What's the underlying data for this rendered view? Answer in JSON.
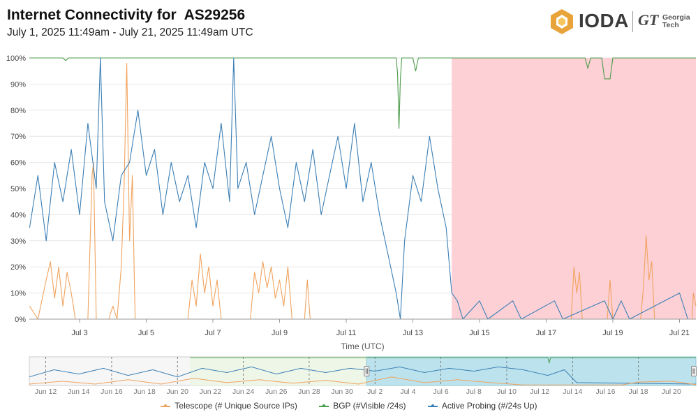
{
  "header": {
    "title": "Internet Connectivity for  AS29256",
    "subtitle": "July 1, 2025 11:49am - July 21, 2025 11:49am UTC"
  },
  "logo": {
    "icon": "ioda-hexagon-icon",
    "ioda_text": "IODA",
    "gt_text": "GT",
    "georgia_text": "Georgia",
    "tech_text": "Tech",
    "colors": {
      "hexagon_outer": "#e8a33a",
      "hexagon_inner": "#f6c65c"
    }
  },
  "chart_data": {
    "type": "line",
    "title": "Internet Connectivity for  AS29256",
    "subtitle": "July 1, 2025 11:49am - July 21, 2025 11:49am UTC",
    "xlabel": "Time (UTC)",
    "ylabel": "",
    "y_unit": "%",
    "ylim": [
      0,
      100
    ],
    "y_ticks": [
      "0%",
      "10%",
      "20%",
      "30%",
      "40%",
      "50%",
      "60%",
      "70%",
      "80%",
      "90%",
      "100%"
    ],
    "xlim": [
      "2025-07-01T11:49",
      "2025-07-21T11:49"
    ],
    "x_ticks": [
      "Jul 3",
      "Jul 5",
      "Jul 7",
      "Jul 9",
      "Jul 11",
      "Jul 13",
      "Jul 15",
      "Jul 17",
      "Jul 19",
      "Jul 21"
    ],
    "grid": true,
    "outage_region": {
      "start": "2025-07-14T04:00",
      "end": "2025-07-21T11:49",
      "color": "#fdd0d6"
    },
    "legend_position": "bottom",
    "series": [
      {
        "name": "Telescope (# Unique Source IPs)",
        "color": "#f0a35e",
        "points": [
          [
            "2025-07-01T12:00",
            5
          ],
          [
            "2025-07-01T18:00",
            0
          ],
          [
            "2025-07-02T00:00",
            15
          ],
          [
            "2025-07-02T03:00",
            22
          ],
          [
            "2025-07-02T06:00",
            8
          ],
          [
            "2025-07-02T09:00",
            20
          ],
          [
            "2025-07-02T12:00",
            5
          ],
          [
            "2025-07-02T15:00",
            18
          ],
          [
            "2025-07-02T18:00",
            10
          ],
          [
            "2025-07-02T21:00",
            0
          ],
          [
            "2025-07-03T06:00",
            0
          ],
          [
            "2025-07-03T09:00",
            55
          ],
          [
            "2025-07-03T10:00",
            60
          ],
          [
            "2025-07-03T12:00",
            0
          ],
          [
            "2025-07-03T21:00",
            0
          ],
          [
            "2025-07-04T00:00",
            5
          ],
          [
            "2025-07-04T03:00",
            0
          ],
          [
            "2025-07-04T06:00",
            20
          ],
          [
            "2025-07-04T08:00",
            50
          ],
          [
            "2025-07-04T10:00",
            98
          ],
          [
            "2025-07-04T12:00",
            30
          ],
          [
            "2025-07-04T14:00",
            55
          ],
          [
            "2025-07-04T16:00",
            0
          ],
          [
            "2025-07-06T06:00",
            0
          ],
          [
            "2025-07-06T09:00",
            15
          ],
          [
            "2025-07-06T12:00",
            5
          ],
          [
            "2025-07-06T15:00",
            25
          ],
          [
            "2025-07-06T18:00",
            10
          ],
          [
            "2025-07-06T21:00",
            20
          ],
          [
            "2025-07-07T00:00",
            5
          ],
          [
            "2025-07-07T03:00",
            15
          ],
          [
            "2025-07-07T06:00",
            0
          ],
          [
            "2025-07-08T03:00",
            0
          ],
          [
            "2025-07-08T06:00",
            18
          ],
          [
            "2025-07-08T09:00",
            10
          ],
          [
            "2025-07-08T12:00",
            22
          ],
          [
            "2025-07-08T15:00",
            12
          ],
          [
            "2025-07-08T18:00",
            20
          ],
          [
            "2025-07-08T21:00",
            8
          ],
          [
            "2025-07-09T00:00",
            15
          ],
          [
            "2025-07-09T03:00",
            5
          ],
          [
            "2025-07-09T06:00",
            20
          ],
          [
            "2025-07-09T09:00",
            0
          ],
          [
            "2025-07-09T18:00",
            0
          ],
          [
            "2025-07-09T20:00",
            15
          ],
          [
            "2025-07-09T22:00",
            0
          ],
          [
            "2025-07-17T18:00",
            0
          ],
          [
            "2025-07-17T20:00",
            20
          ],
          [
            "2025-07-17T22:00",
            10
          ],
          [
            "2025-07-18T00:00",
            18
          ],
          [
            "2025-07-18T02:00",
            0
          ],
          [
            "2025-07-18T20:00",
            0
          ],
          [
            "2025-07-18T22:00",
            15
          ],
          [
            "2025-07-19T00:00",
            0
          ],
          [
            "2025-07-19T20:00",
            0
          ],
          [
            "2025-07-19T22:00",
            12
          ],
          [
            "2025-07-20T00:00",
            32
          ],
          [
            "2025-07-20T02:00",
            15
          ],
          [
            "2025-07-20T04:00",
            22
          ],
          [
            "2025-07-20T06:00",
            0
          ],
          [
            "2025-07-21T09:00",
            0
          ],
          [
            "2025-07-21T10:00",
            10
          ],
          [
            "2025-07-21T11:49",
            5
          ]
        ]
      },
      {
        "name": "BGP (#Visible /24s)",
        "color": "#4a9b4a",
        "points": [
          [
            "2025-07-01T11:49",
            100
          ],
          [
            "2025-07-02T12:00",
            100
          ],
          [
            "2025-07-02T14:00",
            99
          ],
          [
            "2025-07-02T16:00",
            100
          ],
          [
            "2025-07-12T12:00",
            100
          ],
          [
            "2025-07-12T13:00",
            94
          ],
          [
            "2025-07-12T14:00",
            73
          ],
          [
            "2025-07-12T15:00",
            92
          ],
          [
            "2025-07-12T16:00",
            100
          ],
          [
            "2025-07-13T00:00",
            100
          ],
          [
            "2025-07-13T02:00",
            95
          ],
          [
            "2025-07-13T04:00",
            100
          ],
          [
            "2025-07-18T04:00",
            100
          ],
          [
            "2025-07-18T06:00",
            96
          ],
          [
            "2025-07-18T08:00",
            100
          ],
          [
            "2025-07-18T16:00",
            100
          ],
          [
            "2025-07-18T18:00",
            92
          ],
          [
            "2025-07-18T22:00",
            92
          ],
          [
            "2025-07-19T00:00",
            100
          ],
          [
            "2025-07-21T11:49",
            100
          ]
        ]
      },
      {
        "name": "Active Probing (#/24s Up)",
        "color": "#3b7fb5",
        "points": [
          [
            "2025-07-01T12:00",
            35
          ],
          [
            "2025-07-01T18:00",
            55
          ],
          [
            "2025-07-02T00:00",
            30
          ],
          [
            "2025-07-02T06:00",
            60
          ],
          [
            "2025-07-02T12:00",
            45
          ],
          [
            "2025-07-02T18:00",
            65
          ],
          [
            "2025-07-03T00:00",
            40
          ],
          [
            "2025-07-03T06:00",
            75
          ],
          [
            "2025-07-03T12:00",
            50
          ],
          [
            "2025-07-03T15:00",
            100
          ],
          [
            "2025-07-03T18:00",
            45
          ],
          [
            "2025-07-04T00:00",
            30
          ],
          [
            "2025-07-04T06:00",
            55
          ],
          [
            "2025-07-04T12:00",
            60
          ],
          [
            "2025-07-04T18:00",
            80
          ],
          [
            "2025-07-05T00:00",
            55
          ],
          [
            "2025-07-05T06:00",
            65
          ],
          [
            "2025-07-05T12:00",
            40
          ],
          [
            "2025-07-05T18:00",
            60
          ],
          [
            "2025-07-06T00:00",
            45
          ],
          [
            "2025-07-06T06:00",
            55
          ],
          [
            "2025-07-06T12:00",
            35
          ],
          [
            "2025-07-06T18:00",
            60
          ],
          [
            "2025-07-07T00:00",
            50
          ],
          [
            "2025-07-07T06:00",
            75
          ],
          [
            "2025-07-07T12:00",
            45
          ],
          [
            "2025-07-07T15:00",
            100
          ],
          [
            "2025-07-07T18:00",
            50
          ],
          [
            "2025-07-08T00:00",
            60
          ],
          [
            "2025-07-08T06:00",
            40
          ],
          [
            "2025-07-08T12:00",
            55
          ],
          [
            "2025-07-08T18:00",
            70
          ],
          [
            "2025-07-09T00:00",
            50
          ],
          [
            "2025-07-09T06:00",
            35
          ],
          [
            "2025-07-09T12:00",
            60
          ],
          [
            "2025-07-09T18:00",
            45
          ],
          [
            "2025-07-10T00:00",
            65
          ],
          [
            "2025-07-10T06:00",
            40
          ],
          [
            "2025-07-10T12:00",
            55
          ],
          [
            "2025-07-10T18:00",
            70
          ],
          [
            "2025-07-11T00:00",
            50
          ],
          [
            "2025-07-11T06:00",
            75
          ],
          [
            "2025-07-11T12:00",
            45
          ],
          [
            "2025-07-11T18:00",
            60
          ],
          [
            "2025-07-12T00:00",
            40
          ],
          [
            "2025-07-12T06:00",
            25
          ],
          [
            "2025-07-12T12:00",
            10
          ],
          [
            "2025-07-12T15:00",
            0
          ],
          [
            "2025-07-12T18:00",
            30
          ],
          [
            "2025-07-13T00:00",
            55
          ],
          [
            "2025-07-13T06:00",
            45
          ],
          [
            "2025-07-13T12:00",
            70
          ],
          [
            "2025-07-13T18:00",
            50
          ],
          [
            "2025-07-14T00:00",
            35
          ],
          [
            "2025-07-14T04:00",
            10
          ],
          [
            "2025-07-14T08:00",
            7
          ],
          [
            "2025-07-14T12:00",
            0
          ],
          [
            "2025-07-15T00:00",
            7
          ],
          [
            "2025-07-15T06:00",
            0
          ],
          [
            "2025-07-16T00:00",
            7
          ],
          [
            "2025-07-16T06:00",
            0
          ],
          [
            "2025-07-17T06:00",
            7
          ],
          [
            "2025-07-17T12:00",
            0
          ],
          [
            "2025-07-18T18:00",
            7
          ],
          [
            "2025-07-19T00:00",
            0
          ],
          [
            "2025-07-19T06:00",
            7
          ],
          [
            "2025-07-19T12:00",
            0
          ],
          [
            "2025-07-21T00:00",
            10
          ],
          [
            "2025-07-21T06:00",
            0
          ],
          [
            "2025-07-21T11:49",
            0
          ]
        ]
      }
    ]
  },
  "navigator": {
    "x_ticks": [
      "Jun 12",
      "Jun 14",
      "Jun 16",
      "Jun 18",
      "Jun 20",
      "Jun 22",
      "Jun 24",
      "Jun 26",
      "Jun 28",
      "Jun 30",
      "Jul 2",
      "Jul 4",
      "Jul 6",
      "Jul 8",
      "Jul 10",
      "Jul 12",
      "Jul 14",
      "Jul 16",
      "Jul 18",
      "Jul 20"
    ],
    "handle_icon": "drag-handle-icon",
    "selected_color": "#b6e1ec",
    "context_color": "#eef6e8"
  },
  "legend": {
    "items": [
      {
        "label": "Telescope (# Unique Source IPs)",
        "color": "#f0a35e"
      },
      {
        "label": "BGP (#Visible /24s)",
        "color": "#4a9b4a"
      },
      {
        "label": "Active Probing (#/24s Up)",
        "color": "#3b7fb5"
      }
    ]
  }
}
